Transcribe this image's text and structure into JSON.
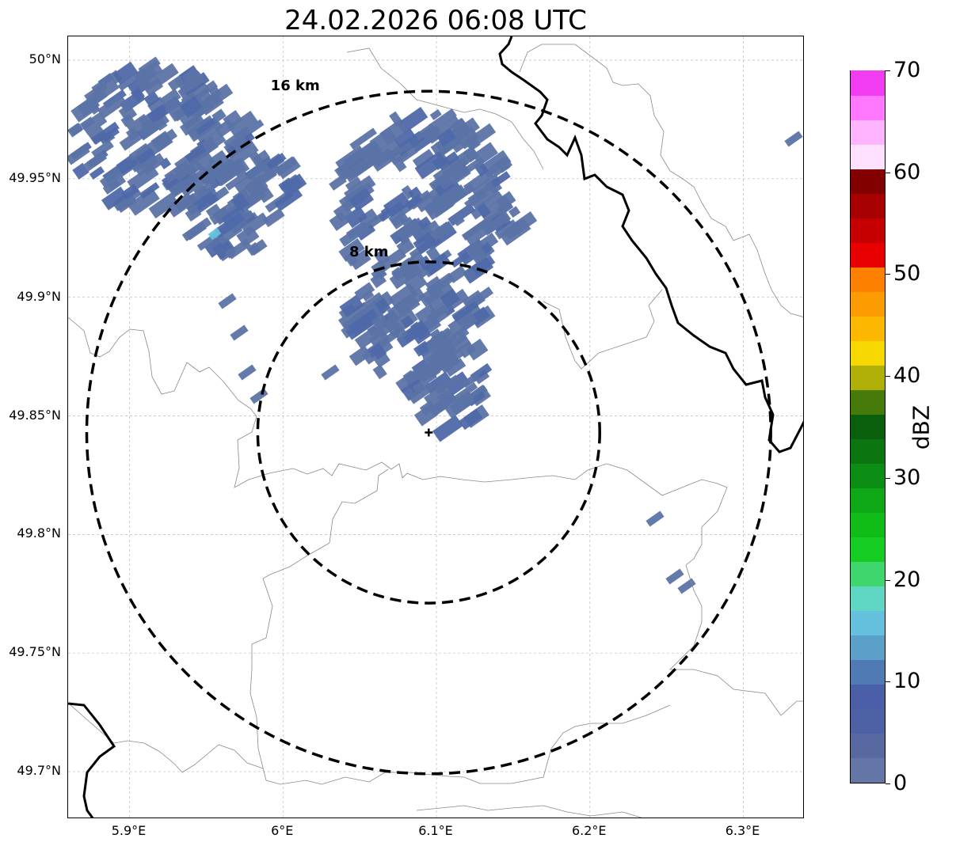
{
  "title": "24.02.2026 06:08 UTC",
  "map": {
    "lon_range": [
      5.86,
      6.34
    ],
    "lat_range": [
      49.68,
      50.01
    ],
    "radar_site": {
      "lon": 6.095,
      "lat": 49.843,
      "marker": "plus"
    },
    "range_rings": [
      {
        "radius_km": 8,
        "label": "8 km",
        "style": "dashed",
        "color": "#000000"
      },
      {
        "radius_km": 16,
        "label": "16 km",
        "style": "dashed",
        "color": "#000000"
      }
    ],
    "gridlines": true,
    "lat_ticks": [
      {
        "value": 50.0,
        "label": "50°N"
      },
      {
        "value": 49.95,
        "label": "49.95°N"
      },
      {
        "value": 49.9,
        "label": "49.9°N"
      },
      {
        "value": 49.85,
        "label": "49.85°N"
      },
      {
        "value": 49.8,
        "label": "49.8°N"
      },
      {
        "value": 49.75,
        "label": "49.75°N"
      },
      {
        "value": 49.7,
        "label": "49.7°N"
      }
    ],
    "lon_ticks": [
      {
        "value": 5.9,
        "label": "5.9°E"
      },
      {
        "value": 6.0,
        "label": "6°E"
      },
      {
        "value": 6.1,
        "label": "6.1°E"
      },
      {
        "value": 6.2,
        "label": "6.2°E"
      },
      {
        "value": 6.3,
        "label": "6.3°E"
      }
    ],
    "echo_colors": {
      "main": "#5b73a6",
      "dense": "#4f69a8",
      "highlight": "#62c2df"
    }
  },
  "colorbar": {
    "label": "dBZ",
    "min": 0,
    "max": 70,
    "ticks": [
      {
        "value": 0,
        "label": "0"
      },
      {
        "value": 10,
        "label": "10"
      },
      {
        "value": 20,
        "label": "20"
      },
      {
        "value": 30,
        "label": "30"
      },
      {
        "value": 40,
        "label": "40"
      },
      {
        "value": 50,
        "label": "50"
      },
      {
        "value": 60,
        "label": "60"
      },
      {
        "value": 70,
        "label": "70"
      }
    ],
    "colors": [
      "#6476a6",
      "#5868a0",
      "#4c62a4",
      "#4a5fa8",
      "#4f7ab4",
      "#5aa0c8",
      "#64c0dc",
      "#60d6c4",
      "#40d66e",
      "#14cc22",
      "#10bc18",
      "#0ea816",
      "#0c8e14",
      "#0b7610",
      "#0a5f0c",
      "#467a0a",
      "#b0b008",
      "#f6d800",
      "#fcb800",
      "#fd9c00",
      "#fd8000",
      "#e80000",
      "#c60000",
      "#a60000",
      "#820000",
      "#ffe0ff",
      "#ffb4ff",
      "#ff78ff",
      "#f23cf2"
    ]
  }
}
